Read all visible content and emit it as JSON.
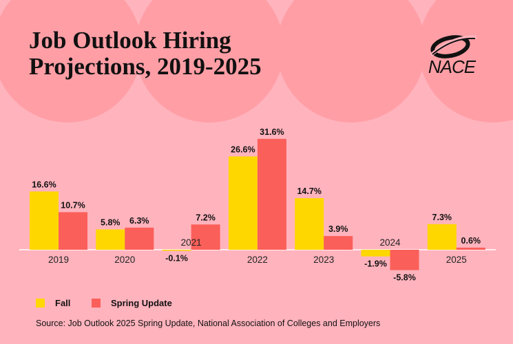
{
  "header": {
    "title_line1": "Job Outlook Hiring",
    "title_line2": "Projections, 2019-2025"
  },
  "logo": {
    "text": "NACE",
    "icon": "nace-swoosh-logo-icon"
  },
  "colors": {
    "fall": "#ffd700",
    "spring": "#fb5f59",
    "background": "#ffb3bd",
    "circles": "#ff9ea5"
  },
  "legend": {
    "fall": "Fall",
    "spring": "Spring Update"
  },
  "source": "Source: Job Outlook 2025 Spring Update, National Association of Colleges and Employers",
  "chart_data": {
    "type": "bar",
    "title": "Job Outlook Hiring Projections, 2019-2025",
    "xlabel": "",
    "ylabel": "",
    "categories": [
      "2019",
      "2020",
      "2021",
      "2022",
      "2023",
      "2024",
      "2025"
    ],
    "series": [
      {
        "name": "Fall",
        "values": [
          16.6,
          5.8,
          -0.1,
          26.6,
          14.7,
          -1.9,
          7.3
        ],
        "labels": [
          "16.6%",
          "5.8%",
          "-0.1%",
          "26.6%",
          "14.7%",
          "-1.9%",
          "7.3%"
        ]
      },
      {
        "name": "Spring Update",
        "values": [
          10.7,
          6.3,
          7.2,
          31.6,
          3.9,
          -5.8,
          0.6
        ],
        "labels": [
          "10.7%",
          "6.3%",
          "7.2%",
          "31.6%",
          "3.9%",
          "-5.8%",
          "0.6%"
        ]
      }
    ],
    "ylim": [
      -6,
      32
    ],
    "grid": false,
    "legend": "bottom-left"
  }
}
